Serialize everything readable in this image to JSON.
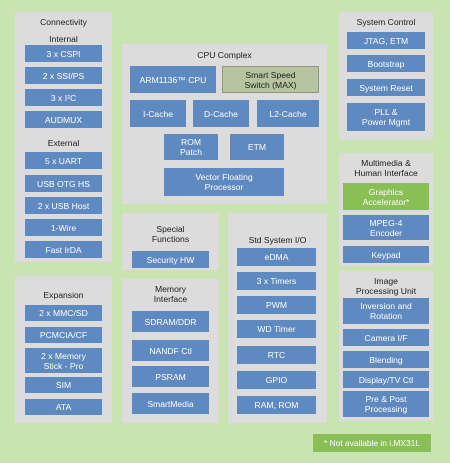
{
  "connectivity": {
    "title": "Connectivity",
    "internal_title": "Internal",
    "internal": [
      "3 x CSPI",
      "2 x SSI/PS",
      "3 x I²C",
      "AUDMUX"
    ],
    "external_title": "External",
    "external": [
      "5 x UART",
      "USB OTG HS",
      "2 x USB Host",
      "1-Wire",
      "Fast IrDA"
    ]
  },
  "expansion": {
    "title": "Expansion",
    "items": [
      "2 x MMC/SD",
      "PCMCIA/CF",
      "2 x Memory\nStick - Pro",
      "SIM",
      "ATA"
    ]
  },
  "cpu_complex": {
    "title": "CPU Complex",
    "arm": "ARM1136™ CPU",
    "smart_speed": "Smart Speed\nSwitch (MAX)",
    "icache": "I-Cache",
    "dcache": "D-Cache",
    "l2cache": "L2-Cache",
    "rom_patch": "ROM\nPatch",
    "etm": "ETM",
    "vfp": "Vector Floating\nProcessor"
  },
  "special_functions": {
    "title": "Special\nFunctions",
    "items": [
      "Security HW"
    ]
  },
  "memory_interface": {
    "title": "Memory\nInterface",
    "items": [
      "SDRAM/DDR",
      "NANDF Ctl",
      "PSRAM",
      "SmartMedia"
    ]
  },
  "std_system_io": {
    "title": "Std System I/O",
    "items": [
      "eDMA",
      "3 x Timers",
      "PWM",
      "WD Timer",
      "RTC",
      "GPIO",
      "RAM, ROM"
    ]
  },
  "system_control": {
    "title": "System Control",
    "items": [
      "JTAG, ETM",
      "Bootstrap",
      "System Reset",
      "PLL &\nPower Mgmt"
    ]
  },
  "multimedia": {
    "title": "Multimedia &\nHuman Interface",
    "graphics": "Graphics\nAccelerator*",
    "items": [
      "MPEG-4\nEncoder",
      "Keypad"
    ]
  },
  "image_processing": {
    "title": "Image\nProcessing Unit",
    "items": [
      "Inversion and\nRotation",
      "Camera I/F",
      "Blending",
      "Display/TV Ctl",
      "Pre & Post\nProcessing"
    ]
  },
  "footnote": "* Not available in i.MX31L",
  "colors": {
    "background": "#c9e4b1",
    "panel": "#dcdcdc",
    "block": "#5f89c1",
    "highlight": "#89bf54",
    "gray_block": "#b8c3a0"
  }
}
